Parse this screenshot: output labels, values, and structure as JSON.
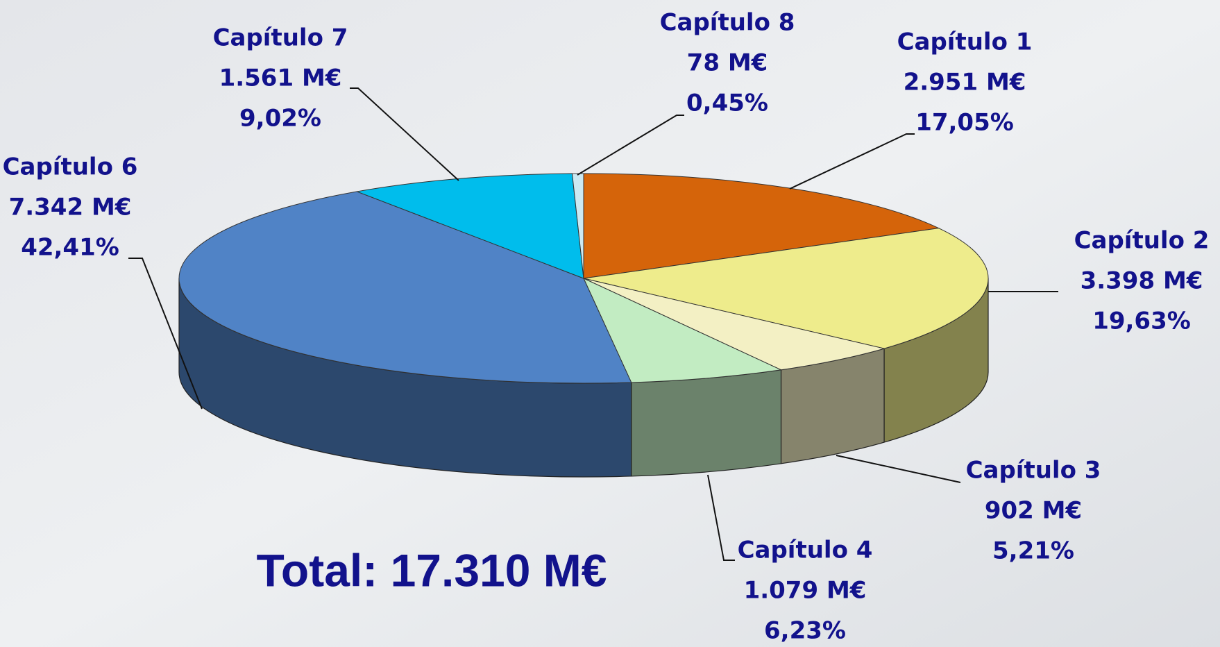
{
  "chart_data": {
    "type": "pie3d",
    "categories": [
      "Capítulo 1",
      "Capítulo 2",
      "Capítulo 3",
      "Capítulo 4",
      "Capítulo 6",
      "Capítulo 7",
      "Capítulo 8"
    ],
    "values": [
      2951,
      3398,
      902,
      1079,
      7342,
      1561,
      78
    ],
    "value_labels": [
      "2.951 M€",
      "3.398 M€",
      "902 M€",
      "1.079 M€",
      "7.342 M€",
      "1.561 M€",
      "78 M€"
    ],
    "percent_labels": [
      "17,05%",
      "19,63%",
      "5,21%",
      "6,23%",
      "42,41%",
      "9,02%",
      "0,45%"
    ],
    "colors": [
      "#d5640a",
      "#eeec8c",
      "#f3f0c4",
      "#c2ecc2",
      "#5083c6",
      "#00bdec",
      "#cce9f2"
    ],
    "total_label": "Total: 17.310 M€"
  }
}
